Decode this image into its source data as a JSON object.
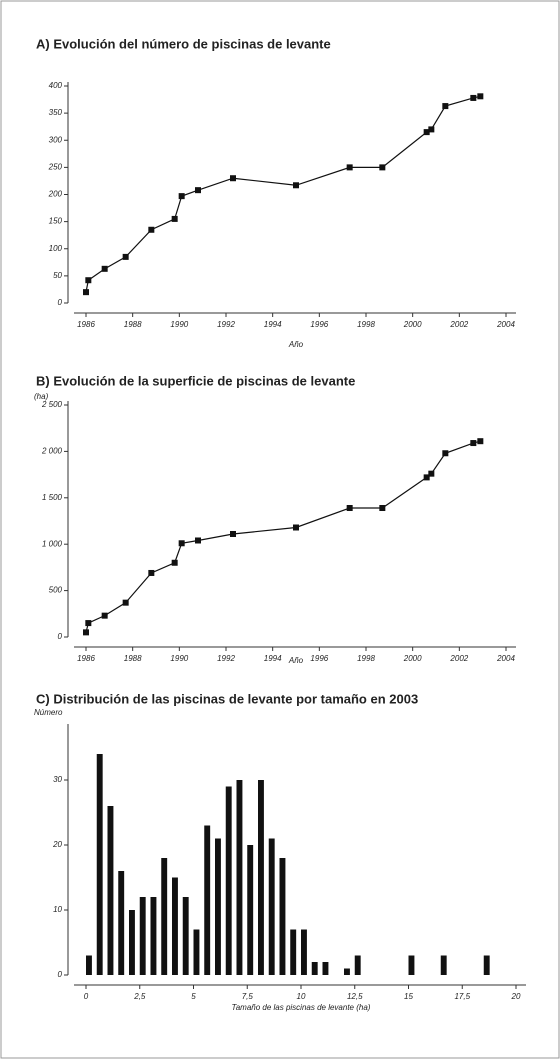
{
  "chart_data": [
    {
      "type": "line",
      "title": "A) Evolución del número de piscinas de levante",
      "x_label": "Año",
      "x": [
        1986.0,
        1986.1,
        1986.8,
        1987.7,
        1988.8,
        1989.8,
        1990.1,
        1990.8,
        1992.3,
        1995.0,
        1997.3,
        1998.7,
        2000.6,
        2000.8,
        2001.4,
        2002.6,
        2002.9
      ],
      "series": [
        {
          "color": "#111111",
          "values": [
            20,
            42,
            63,
            85,
            135,
            155,
            197,
            208,
            230,
            217,
            250,
            250,
            315,
            320,
            363,
            378,
            381
          ]
        }
      ],
      "xlim": [
        1986,
        2004
      ],
      "xticks": [
        1986,
        1988,
        1990,
        1992,
        1994,
        1996,
        1998,
        2000,
        2002,
        2004
      ],
      "ylim": [
        0,
        400
      ],
      "yticks": [
        0,
        50,
        100,
        150,
        200,
        250,
        300,
        350,
        400
      ]
    },
    {
      "type": "line",
      "title": "B) Evolución de la superficie de piscinas de levante",
      "x_label": "Año",
      "y_label": "(ha)",
      "x": [
        1986.0,
        1986.1,
        1986.8,
        1987.7,
        1988.8,
        1989.8,
        1990.1,
        1990.8,
        1992.3,
        1995.0,
        1997.3,
        1998.7,
        2000.6,
        2000.8,
        2001.4,
        2002.6,
        2002.9
      ],
      "series": [
        {
          "color": "#111111",
          "values": [
            50,
            150,
            230,
            370,
            690,
            800,
            1010,
            1040,
            1110,
            1180,
            1390,
            1390,
            1720,
            1760,
            1980,
            2090,
            2110
          ]
        }
      ],
      "xlim": [
        1986,
        2004
      ],
      "xticks": [
        1986,
        1988,
        1990,
        1992,
        1994,
        1996,
        1998,
        2000,
        2002,
        2004
      ],
      "ylim": [
        0,
        2500
      ],
      "yticks": [
        0,
        500,
        {
          "value": 1000,
          "label": "1 000"
        },
        {
          "value": 1500,
          "label": "1 500"
        },
        {
          "value": 2000,
          "label": "2 000"
        },
        {
          "value": 2500,
          "label": "2 500"
        }
      ]
    },
    {
      "type": "histogram",
      "title": "C) Distribución de las piscinas de levante por tamaño en 2003",
      "x_label": "Tamaño de las piscinas de levante (ha)",
      "y_label": "Número",
      "bins": [
        0,
        0.5,
        1,
        1.5,
        2,
        2.5,
        3,
        3.5,
        4,
        4.5,
        5,
        5.5,
        6,
        6.5,
        7,
        7.5,
        8,
        8.5,
        9,
        9.5,
        10,
        10.5,
        11,
        11.5,
        12,
        12.5,
        13,
        13.5,
        14,
        14.5,
        15,
        15.5,
        16,
        16.5,
        17,
        17.5,
        18,
        18.5,
        19
      ],
      "values": [
        3,
        34,
        26,
        16,
        10,
        12,
        12,
        18,
        15,
        12,
        7,
        23,
        21,
        29,
        30,
        20,
        30,
        21,
        18,
        7,
        7,
        2,
        2,
        0,
        1,
        3,
        0,
        0,
        0,
        0,
        3,
        0,
        0,
        3,
        0,
        0,
        0,
        3
      ],
      "color": "#111111",
      "xlim": [
        0,
        20
      ],
      "xticks": [
        0,
        {
          "value": 2.5,
          "label": "2,5"
        },
        5,
        {
          "value": 7.5,
          "label": "7,5"
        },
        10,
        {
          "value": 12.5,
          "label": "12,5"
        },
        15,
        {
          "value": 17.5,
          "label": "17,5"
        },
        20
      ],
      "ylim": [
        0,
        38
      ],
      "yticks": [
        0,
        10,
        20,
        30
      ]
    }
  ]
}
